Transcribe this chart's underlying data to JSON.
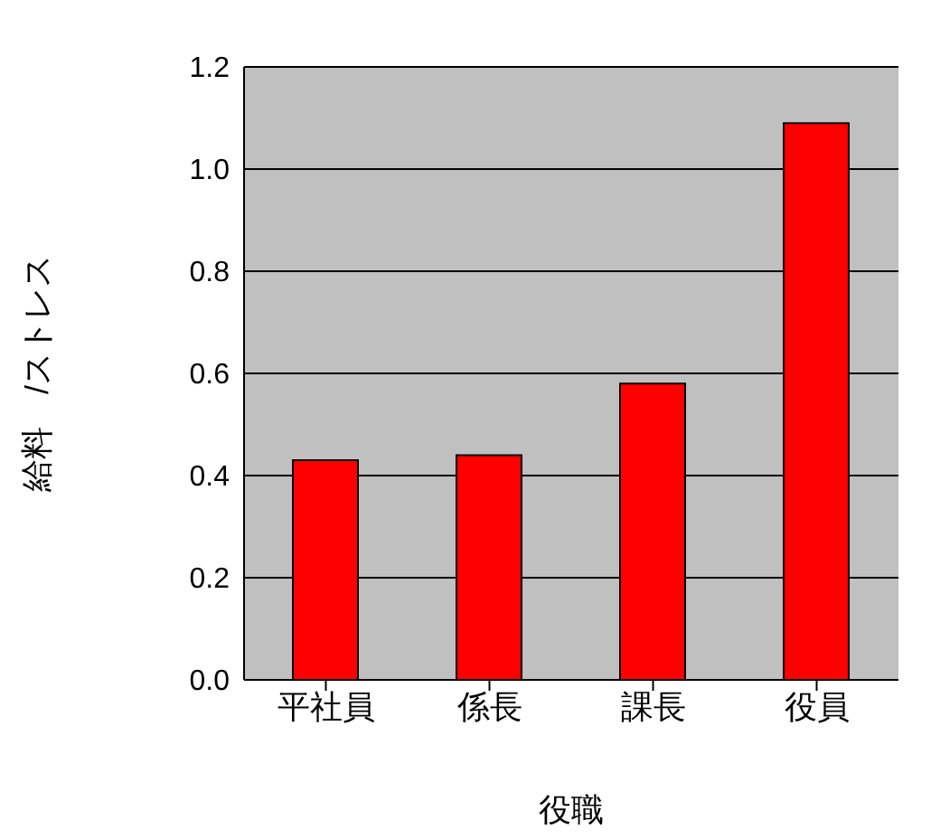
{
  "chart_data": {
    "type": "bar",
    "xlabel": "役職",
    "ylabel": "給料　/ストレス",
    "categories": [
      "平社員",
      "係長",
      "課長",
      "役員"
    ],
    "values": [
      0.43,
      0.44,
      0.58,
      1.09
    ],
    "color": "#ff0000",
    "ylim": [
      0,
      1.2
    ],
    "yticks": [
      {
        "value": 0,
        "label": "0.0"
      },
      {
        "value": 0.2,
        "label": "0.2"
      },
      {
        "value": 0.4,
        "label": "0.4"
      },
      {
        "value": 0.6,
        "label": "0.6"
      },
      {
        "value": 0.8,
        "label": "0.8"
      },
      {
        "value": 1,
        "label": "1.0"
      },
      {
        "value": 1.2,
        "label": "1.2"
      }
    ],
    "grid": "y",
    "legend": false
  }
}
